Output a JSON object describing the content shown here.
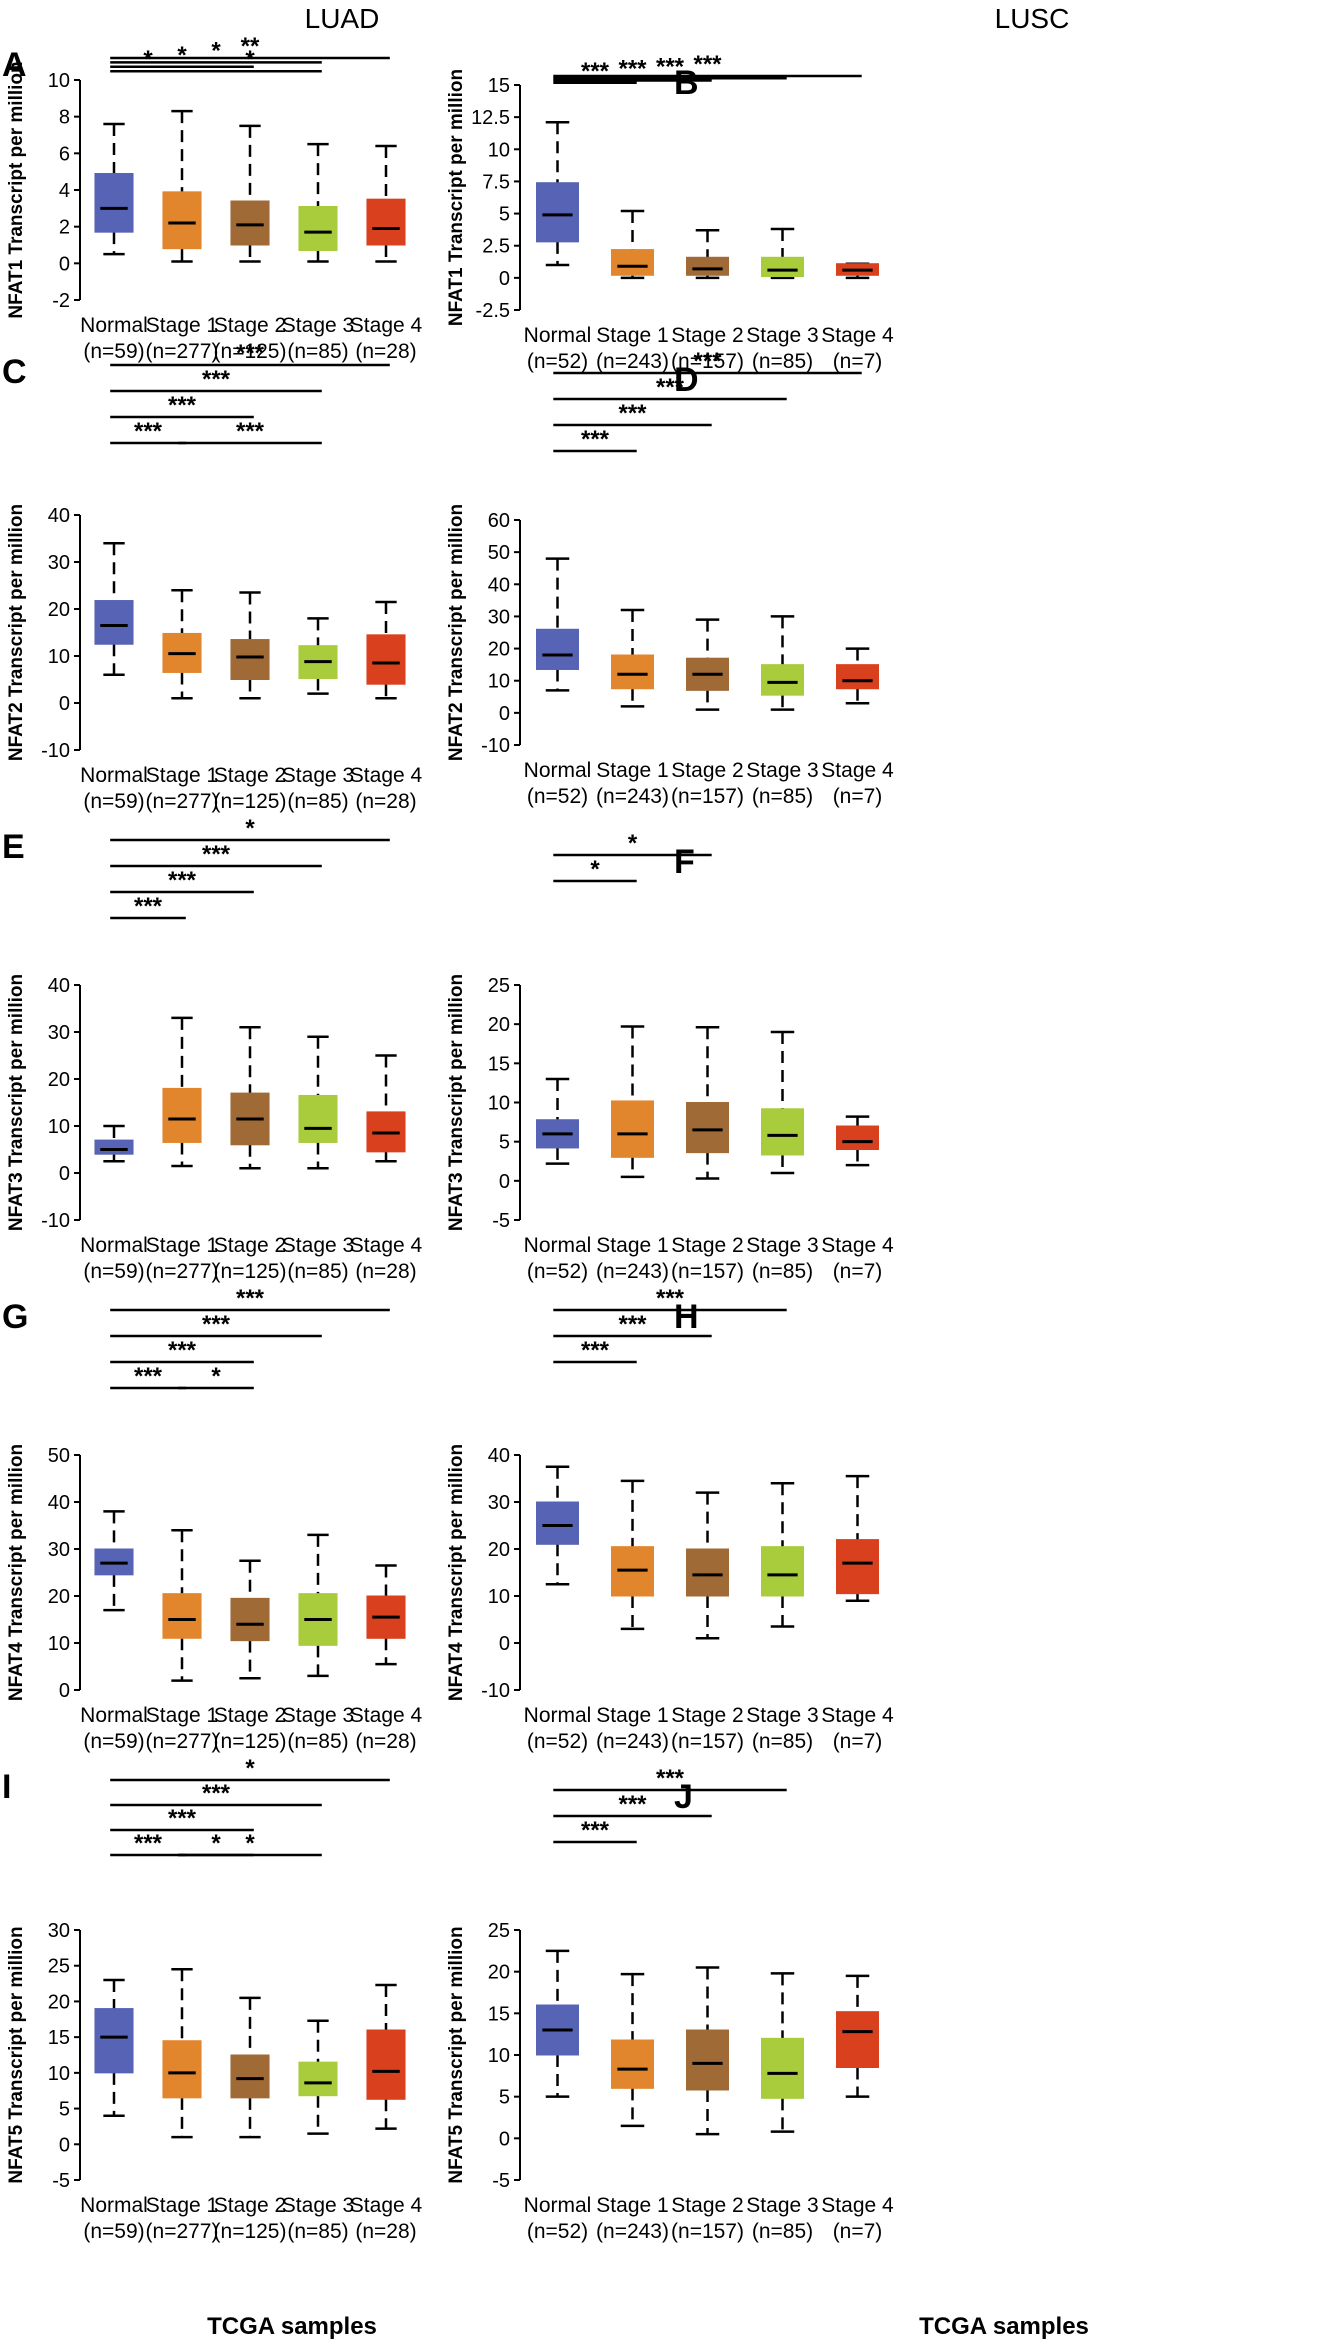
{
  "column_titles": [
    "LUAD",
    "LUSC"
  ],
  "footer": [
    "TCGA samples",
    "TCGA samples"
  ],
  "colors": {
    "normal": "#5763b4",
    "stage1": "#e2862e",
    "stage2": "#a06a36",
    "stage3": "#a8cc3c",
    "stage4": "#d8401e"
  },
  "chart_data": [
    {
      "panel": "A",
      "type": "box",
      "ylabel": "NFAT1 Transcript per million",
      "ylim": [
        -2,
        10
      ],
      "yticks": [
        "-2",
        "0",
        "2",
        "4",
        "6",
        "8",
        "10"
      ],
      "categories": [
        "Normal",
        "Stage 1",
        "Stage 2",
        "Stage 3",
        "Stage 4"
      ],
      "n_labels": [
        "(n=59)",
        "(n=277)",
        "(n=125)",
        "(n=85)",
        "(n=28)"
      ],
      "boxes": [
        {
          "min": 0.5,
          "q1": 1.7,
          "median": 3.0,
          "q3": 4.9,
          "max": 7.6
        },
        {
          "min": 0.1,
          "q1": 0.8,
          "median": 2.2,
          "q3": 3.9,
          "max": 8.3
        },
        {
          "min": 0.1,
          "q1": 1.0,
          "median": 2.1,
          "q3": 3.4,
          "max": 7.5
        },
        {
          "min": 0.1,
          "q1": 0.7,
          "median": 1.7,
          "q3": 3.1,
          "max": 6.5
        },
        {
          "min": 0.1,
          "q1": 1.0,
          "median": 1.9,
          "q3": 3.5,
          "max": 6.4
        }
      ],
      "significance": [
        {
          "from": 0,
          "to": 4,
          "label": "**"
        },
        {
          "from": 0,
          "to": 3,
          "label": "*"
        },
        {
          "from": 0,
          "to": 2,
          "label": "*"
        },
        {
          "from": 0,
          "to": 1,
          "label": "*"
        },
        {
          "from": 1,
          "to": 3,
          "label": "*"
        }
      ]
    },
    {
      "panel": "B",
      "type": "box",
      "ylabel": "NFAT1 Transcript per million",
      "ylim": [
        -2.5,
        15
      ],
      "yticks": [
        "-2.5",
        "0",
        "2.5",
        "5",
        "7.5",
        "10",
        "12.5",
        "15"
      ],
      "categories": [
        "Normal",
        "Stage 1",
        "Stage 2",
        "Stage 3",
        "Stage 4"
      ],
      "n_labels": [
        "(n=52)",
        "(n=243)",
        "(n=157)",
        "(n=85)",
        "(n=7)"
      ],
      "boxes": [
        {
          "min": 1.0,
          "q1": 2.8,
          "median": 4.9,
          "q3": 7.4,
          "max": 12.1
        },
        {
          "min": 0.0,
          "q1": 0.2,
          "median": 0.9,
          "q3": 2.2,
          "max": 5.2
        },
        {
          "min": 0.0,
          "q1": 0.2,
          "median": 0.7,
          "q3": 1.6,
          "max": 3.7
        },
        {
          "min": 0.0,
          "q1": 0.1,
          "median": 0.6,
          "q3": 1.6,
          "max": 3.8
        },
        {
          "min": 0.0,
          "q1": 0.2,
          "median": 0.6,
          "q3": 1.1,
          "max": 1.1
        }
      ],
      "significance": [
        {
          "from": 0,
          "to": 4,
          "label": "***"
        },
        {
          "from": 0,
          "to": 3,
          "label": "***"
        },
        {
          "from": 0,
          "to": 2,
          "label": "***"
        },
        {
          "from": 0,
          "to": 1,
          "label": "***"
        }
      ]
    },
    {
      "panel": "C",
      "type": "box",
      "ylabel": "NFAT2 Transcript per million",
      "ylim": [
        -10,
        40
      ],
      "yticks": [
        "-10",
        "0",
        "10",
        "20",
        "30",
        "40"
      ],
      "categories": [
        "Normal",
        "Stage 1",
        "Stage 2",
        "Stage 3",
        "Stage 4"
      ],
      "n_labels": [
        "(n=59)",
        "(n=277)",
        "(n=125)",
        "(n=85)",
        "(n=28)"
      ],
      "boxes": [
        {
          "min": 6,
          "q1": 12.5,
          "median": 16.5,
          "q3": 21.8,
          "max": 34
        },
        {
          "min": 1,
          "q1": 6.5,
          "median": 10.5,
          "q3": 14.8,
          "max": 24
        },
        {
          "min": 1,
          "q1": 5.0,
          "median": 9.8,
          "q3": 13.5,
          "max": 23.5
        },
        {
          "min": 2,
          "q1": 5.2,
          "median": 8.8,
          "q3": 12.2,
          "max": 18
        },
        {
          "min": 1,
          "q1": 4.0,
          "median": 8.5,
          "q3": 14.5,
          "max": 21.5
        }
      ],
      "significance": [
        {
          "from": 0,
          "to": 4,
          "label": "***"
        },
        {
          "from": 0,
          "to": 3,
          "label": "***"
        },
        {
          "from": 0,
          "to": 2,
          "label": "***"
        },
        {
          "from": 0,
          "to": 1,
          "label": "***"
        },
        {
          "from": 1,
          "to": 3,
          "label": "***"
        }
      ]
    },
    {
      "panel": "D",
      "type": "box",
      "ylabel": "NFAT2 Transcript per million",
      "ylim": [
        -10,
        60
      ],
      "yticks": [
        "-10",
        "0",
        "10",
        "20",
        "30",
        "40",
        "50",
        "60"
      ],
      "categories": [
        "Normal",
        "Stage 1",
        "Stage 2",
        "Stage 3",
        "Stage 4"
      ],
      "n_labels": [
        "(n=52)",
        "(n=243)",
        "(n=157)",
        "(n=85)",
        "(n=7)"
      ],
      "boxes": [
        {
          "min": 7,
          "q1": 13.5,
          "median": 18,
          "q3": 26,
          "max": 48
        },
        {
          "min": 2,
          "q1": 7.5,
          "median": 12,
          "q3": 18,
          "max": 32
        },
        {
          "min": 1,
          "q1": 7.0,
          "median": 12,
          "q3": 17,
          "max": 29
        },
        {
          "min": 1,
          "q1": 5.5,
          "median": 9.5,
          "q3": 15,
          "max": 30
        },
        {
          "min": 3,
          "q1": 7.5,
          "median": 10,
          "q3": 15,
          "max": 20
        }
      ],
      "significance": [
        {
          "from": 0,
          "to": 4,
          "label": "***"
        },
        {
          "from": 0,
          "to": 3,
          "label": "***"
        },
        {
          "from": 0,
          "to": 2,
          "label": "***"
        },
        {
          "from": 0,
          "to": 1,
          "label": "***"
        }
      ]
    },
    {
      "panel": "E",
      "type": "box",
      "ylabel": "NFAT3 Transcript per million",
      "ylim": [
        -10,
        40
      ],
      "yticks": [
        "-10",
        "0",
        "10",
        "20",
        "30",
        "40"
      ],
      "categories": [
        "Normal",
        "Stage 1",
        "Stage 2",
        "Stage 3",
        "Stage 4"
      ],
      "n_labels": [
        "(n=59)",
        "(n=277)",
        "(n=125)",
        "(n=85)",
        "(n=28)"
      ],
      "boxes": [
        {
          "min": 2.5,
          "q1": 4.0,
          "median": 5.0,
          "q3": 7.0,
          "max": 10
        },
        {
          "min": 1.5,
          "q1": 6.5,
          "median": 11.5,
          "q3": 18,
          "max": 33
        },
        {
          "min": 1.0,
          "q1": 6.0,
          "median": 11.5,
          "q3": 17,
          "max": 31
        },
        {
          "min": 1.0,
          "q1": 6.5,
          "median": 9.5,
          "q3": 16.5,
          "max": 29
        },
        {
          "min": 2.5,
          "q1": 4.5,
          "median": 8.5,
          "q3": 13,
          "max": 25
        }
      ],
      "significance": [
        {
          "from": 0,
          "to": 4,
          "label": "*"
        },
        {
          "from": 0,
          "to": 3,
          "label": "***"
        },
        {
          "from": 0,
          "to": 2,
          "label": "***"
        },
        {
          "from": 0,
          "to": 1,
          "label": "***"
        }
      ]
    },
    {
      "panel": "F",
      "type": "box",
      "ylabel": "NFAT3 Transcript per million",
      "ylim": [
        -5,
        25
      ],
      "yticks": [
        "-5",
        "0",
        "5",
        "10",
        "15",
        "20",
        "25"
      ],
      "categories": [
        "Normal",
        "Stage 1",
        "Stage 2",
        "Stage 3",
        "Stage 4"
      ],
      "n_labels": [
        "(n=52)",
        "(n=243)",
        "(n=157)",
        "(n=85)",
        "(n=7)"
      ],
      "boxes": [
        {
          "min": 2.2,
          "q1": 4.2,
          "median": 6.0,
          "q3": 7.8,
          "max": 13
        },
        {
          "min": 0.5,
          "q1": 3.0,
          "median": 6.0,
          "q3": 10.2,
          "max": 19.7
        },
        {
          "min": 0.3,
          "q1": 3.6,
          "median": 6.5,
          "q3": 10,
          "max": 19.6
        },
        {
          "min": 1.0,
          "q1": 3.3,
          "median": 5.8,
          "q3": 9.2,
          "max": 19
        },
        {
          "min": 2.0,
          "q1": 4.0,
          "median": 5.0,
          "q3": 7.0,
          "max": 8.2
        }
      ],
      "significance": [
        {
          "from": 0,
          "to": 2,
          "label": "*"
        },
        {
          "from": 0,
          "to": 1,
          "label": "*"
        }
      ]
    },
    {
      "panel": "G",
      "type": "box",
      "ylabel": "NFAT4 Transcript per million",
      "ylim": [
        0,
        50
      ],
      "yticks": [
        "0",
        "10",
        "20",
        "30",
        "40",
        "50"
      ],
      "categories": [
        "Normal",
        "Stage 1",
        "Stage 2",
        "Stage 3",
        "Stage 4"
      ],
      "n_labels": [
        "(n=59)",
        "(n=277)",
        "(n=125)",
        "(n=85)",
        "(n=28)"
      ],
      "boxes": [
        {
          "min": 17,
          "q1": 24.5,
          "median": 27,
          "q3": 30,
          "max": 38
        },
        {
          "min": 2,
          "q1": 11,
          "median": 15,
          "q3": 20.5,
          "max": 34
        },
        {
          "min": 2.5,
          "q1": 10.5,
          "median": 14,
          "q3": 19.5,
          "max": 27.5
        },
        {
          "min": 3,
          "q1": 9.5,
          "median": 15,
          "q3": 20.5,
          "max": 33
        },
        {
          "min": 5.5,
          "q1": 11,
          "median": 15.5,
          "q3": 20,
          "max": 26.5
        }
      ],
      "significance": [
        {
          "from": 0,
          "to": 4,
          "label": "***"
        },
        {
          "from": 0,
          "to": 3,
          "label": "***"
        },
        {
          "from": 0,
          "to": 2,
          "label": "***"
        },
        {
          "from": 0,
          "to": 1,
          "label": "***"
        },
        {
          "from": 1,
          "to": 2,
          "label": "*"
        }
      ]
    },
    {
      "panel": "H",
      "type": "box",
      "ylabel": "NFAT4 Transcript per million",
      "ylim": [
        -10,
        40
      ],
      "yticks": [
        "-10",
        "0",
        "10",
        "20",
        "30",
        "40"
      ],
      "categories": [
        "Normal",
        "Stage 1",
        "Stage 2",
        "Stage 3",
        "Stage 4"
      ],
      "n_labels": [
        "(n=52)",
        "(n=243)",
        "(n=157)",
        "(n=85)",
        "(n=7)"
      ],
      "boxes": [
        {
          "min": 12.5,
          "q1": 21,
          "median": 25,
          "q3": 30,
          "max": 37.5
        },
        {
          "min": 3,
          "q1": 10,
          "median": 15.5,
          "q3": 20.5,
          "max": 34.5
        },
        {
          "min": 1,
          "q1": 10,
          "median": 14.5,
          "q3": 20,
          "max": 32
        },
        {
          "min": 3.5,
          "q1": 10,
          "median": 14.5,
          "q3": 20.5,
          "max": 34
        },
        {
          "min": 9,
          "q1": 10.5,
          "median": 17,
          "q3": 22,
          "max": 35.5
        }
      ],
      "significance": [
        {
          "from": 0,
          "to": 3,
          "label": "***"
        },
        {
          "from": 0,
          "to": 2,
          "label": "***"
        },
        {
          "from": 0,
          "to": 1,
          "label": "***"
        }
      ]
    },
    {
      "panel": "I",
      "type": "box",
      "ylabel": "NFAT5 Transcript per million",
      "ylim": [
        -5,
        30
      ],
      "yticks": [
        "-5",
        "0",
        "5",
        "10",
        "15",
        "20",
        "25",
        "30"
      ],
      "categories": [
        "Normal",
        "Stage 1",
        "Stage 2",
        "Stage 3",
        "Stage 4"
      ],
      "n_labels": [
        "(n=59)",
        "(n=277)",
        "(n=125)",
        "(n=85)",
        "(n=28)"
      ],
      "boxes": [
        {
          "min": 4,
          "q1": 10,
          "median": 15,
          "q3": 19,
          "max": 23
        },
        {
          "min": 1,
          "q1": 6.5,
          "median": 10,
          "q3": 14.5,
          "max": 24.5
        },
        {
          "min": 1,
          "q1": 6.5,
          "median": 9.2,
          "q3": 12.5,
          "max": 20.5
        },
        {
          "min": 1.5,
          "q1": 6.8,
          "median": 8.6,
          "q3": 11.5,
          "max": 17.3
        },
        {
          "min": 2.2,
          "q1": 6.3,
          "median": 10.2,
          "q3": 16,
          "max": 22.3
        }
      ],
      "significance": [
        {
          "from": 0,
          "to": 4,
          "label": "*"
        },
        {
          "from": 0,
          "to": 3,
          "label": "***"
        },
        {
          "from": 0,
          "to": 2,
          "label": "***"
        },
        {
          "from": 0,
          "to": 1,
          "label": "***"
        },
        {
          "from": 1,
          "to": 2,
          "label": "*"
        },
        {
          "from": 1,
          "to": 3,
          "label": "*"
        }
      ]
    },
    {
      "panel": "J",
      "type": "box",
      "ylabel": "NFAT5 Transcript per million",
      "ylim": [
        -5,
        25
      ],
      "yticks": [
        "-5",
        "0",
        "5",
        "10",
        "15",
        "20",
        "25"
      ],
      "categories": [
        "Normal",
        "Stage 1",
        "Stage 2",
        "Stage 3",
        "Stage 4"
      ],
      "n_labels": [
        "(n=52)",
        "(n=243)",
        "(n=157)",
        "(n=85)",
        "(n=7)"
      ],
      "boxes": [
        {
          "min": 5,
          "q1": 10,
          "median": 13,
          "q3": 16,
          "max": 22.5
        },
        {
          "min": 1.5,
          "q1": 6,
          "median": 8.3,
          "q3": 11.8,
          "max": 19.7
        },
        {
          "min": 0.5,
          "q1": 5.8,
          "median": 9,
          "q3": 13,
          "max": 20.5
        },
        {
          "min": 0.8,
          "q1": 4.8,
          "median": 7.8,
          "q3": 12,
          "max": 19.8
        },
        {
          "min": 5,
          "q1": 8.5,
          "median": 12.8,
          "q3": 15.2,
          "max": 19.5
        }
      ],
      "significance": [
        {
          "from": 0,
          "to": 3,
          "label": "***"
        },
        {
          "from": 0,
          "to": 2,
          "label": "***"
        },
        {
          "from": 0,
          "to": 1,
          "label": "***"
        }
      ]
    }
  ]
}
